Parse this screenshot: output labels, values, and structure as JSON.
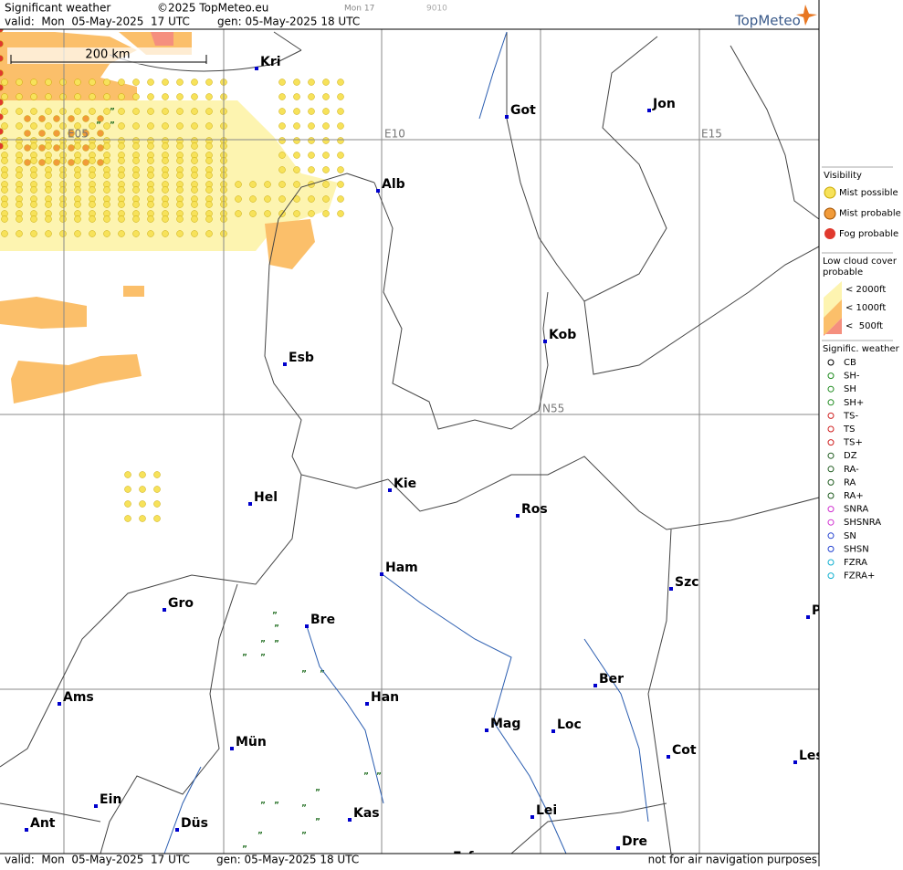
{
  "header": {
    "title": "Significant weather",
    "copyright": "©2025 TopMeteo.eu",
    "run": "Mon 17",
    "code": "9010",
    "valid": "valid:  Mon  05-May-2025  17 UTC",
    "gen": "gen: 05-May-2025 18 UTC",
    "logo": "TopMeteo"
  },
  "map": {
    "scale": "200 km",
    "grid_labels": [
      "E05",
      "E10",
      "E15",
      "N55"
    ],
    "cities": [
      "Kri",
      "Got",
      "Jon",
      "Alb",
      "Kob",
      "Esb",
      "Kie",
      "Hel",
      "Ros",
      "Ham",
      "Szc",
      "Gro",
      "Bre",
      "P",
      "Ber",
      "Ams",
      "Han",
      "Mag",
      "Loc",
      "Mün",
      "Cot",
      "Les",
      "Ein",
      "Kas",
      "Lei",
      "Ant",
      "Düs",
      "Erf",
      "Dre"
    ]
  },
  "footer": {
    "valid": "valid:  Mon  05-May-2025  17 UTC",
    "gen": "gen: 05-May-2025 18 UTC",
    "disclaimer": "not for air navigation purposes"
  },
  "legend": {
    "visibility": {
      "title": "Visibility",
      "items": [
        "Mist possible",
        "Mist probable",
        "Fog probable"
      ]
    },
    "low_cloud": {
      "title": "Low cloud cover probable",
      "items": [
        "< 2000ft",
        "< 1000ft",
        "<  500ft"
      ]
    },
    "weather": {
      "title": "Signific. weather",
      "items": [
        "CB",
        "SH-",
        "SH",
        "SH+",
        "TS-",
        "TS",
        "TS+",
        "DZ",
        "RA-",
        "RA",
        "RA+",
        "SNRA",
        "SHSNRA",
        "SN",
        "SHSN",
        "FZRA",
        "FZRA+"
      ]
    }
  }
}
